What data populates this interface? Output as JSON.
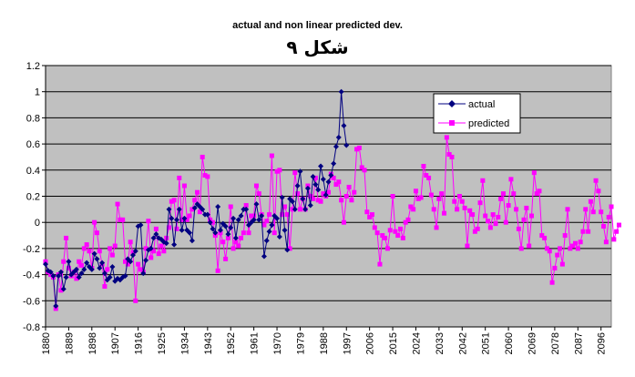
{
  "chart_data": {
    "type": "line",
    "title": "actual and non linear predicted dev.",
    "subtitle": "شكل ٩",
    "xlabel": "",
    "ylabel": "",
    "ylim": [
      -0.8,
      1.2
    ],
    "yticks": [
      -0.8,
      -0.6,
      -0.4,
      -0.2,
      0,
      0.2,
      0.4,
      0.6,
      0.8,
      1,
      1.2
    ],
    "ytick_labels": [
      "-0.8",
      "-0.6",
      "-0.4",
      "-0.2",
      "0",
      "0.2",
      "0.4",
      "0.6",
      "0.8",
      "1",
      "1.2"
    ],
    "xlim": [
      1880,
      2100
    ],
    "xtick_labels": [
      "1880",
      "1889",
      "1898",
      "1907",
      "1916",
      "1925",
      "1934",
      "1943",
      "1952",
      "1961",
      "1970",
      "1979",
      "1988",
      "1997",
      "2006",
      "2015",
      "2024",
      "2033",
      "2042",
      "2051",
      "2060",
      "2069",
      "2078",
      "2087",
      "2096"
    ],
    "grid": true,
    "plot_background": "#c0c0c0",
    "legend_position": "top-right",
    "series": [
      {
        "name": "actual",
        "color": "#000080",
        "marker": "diamond",
        "start_year": 1880,
        "values": [
          -0.32,
          -0.37,
          -0.38,
          -0.41,
          -0.64,
          -0.41,
          -0.38,
          -0.51,
          -0.42,
          -0.3,
          -0.4,
          -0.38,
          -0.36,
          -0.42,
          -0.39,
          -0.36,
          -0.31,
          -0.34,
          -0.36,
          -0.24,
          -0.28,
          -0.35,
          -0.31,
          -0.39,
          -0.44,
          -0.42,
          -0.34,
          -0.45,
          -0.43,
          -0.44,
          -0.42,
          -0.41,
          -0.28,
          -0.3,
          -0.25,
          -0.22,
          -0.03,
          -0.02,
          -0.39,
          -0.29,
          -0.21,
          -0.2,
          -0.12,
          -0.09,
          -0.12,
          -0.13,
          -0.15,
          -0.16,
          0.1,
          0.03,
          -0.17,
          0.02,
          0.1,
          -0.06,
          0.03,
          -0.06,
          -0.08,
          -0.14,
          0.11,
          0.14,
          0.12,
          0.1,
          0.06,
          0.06,
          0.0,
          -0.05,
          -0.08,
          0.12,
          -0.06,
          -0.01,
          -0.03,
          -0.09,
          -0.04,
          0.03,
          -0.12,
          0.02,
          0.05,
          0.1,
          0.1,
          -0.02,
          0.0,
          0.02,
          0.14,
          0.02,
          0.05,
          -0.26,
          -0.14,
          -0.07,
          -0.02,
          0.05,
          0.03,
          -0.11,
          0.19,
          -0.06,
          -0.21,
          0.18,
          0.16,
          0.1,
          0.28,
          0.39,
          0.18,
          0.1,
          0.26,
          0.13,
          0.35,
          0.29,
          0.25,
          0.43,
          0.33,
          0.21,
          0.31,
          0.36,
          0.45,
          0.58,
          0.65,
          1.0,
          0.74,
          0.59
        ]
      },
      {
        "name": "predicted",
        "color": "#ff00ff",
        "marker": "square",
        "start_year": 1880,
        "values": [
          -0.3,
          -0.38,
          -0.4,
          -0.42,
          -0.66,
          -0.4,
          -0.52,
          -0.3,
          -0.12,
          -0.35,
          -0.41,
          -0.38,
          -0.43,
          -0.3,
          -0.33,
          -0.2,
          -0.17,
          -0.22,
          -0.35,
          0.0,
          -0.08,
          -0.22,
          -0.32,
          -0.49,
          -0.36,
          -0.2,
          -0.25,
          -0.18,
          0.14,
          0.02,
          0.02,
          -0.3,
          -0.32,
          -0.15,
          -0.23,
          -0.6,
          -0.32,
          -0.36,
          -0.38,
          -0.2,
          0.01,
          -0.27,
          -0.22,
          -0.05,
          -0.24,
          -0.18,
          -0.22,
          -0.12,
          -0.04,
          0.16,
          0.17,
          -0.05,
          0.34,
          0.02,
          0.28,
          0.02,
          0.05,
          0.1,
          0.17,
          0.23,
          0.08,
          0.5,
          0.36,
          0.35,
          0.02,
          0.0,
          -0.1,
          -0.37,
          -0.08,
          -0.15,
          -0.28,
          -0.12,
          0.12,
          -0.2,
          -0.15,
          -0.18,
          -0.12,
          -0.08,
          0.13,
          -0.08,
          0.05,
          0.05,
          0.28,
          0.22,
          0.06,
          -0.02,
          0.01,
          0.06,
          0.51,
          -0.08,
          0.39,
          0.4,
          0.06,
          0.12,
          0.06,
          -0.2,
          0.1,
          0.38,
          0.22,
          0.1,
          0.18,
          0.1,
          0.28,
          0.2,
          0.18,
          0.34,
          0.17,
          0.16,
          0.22,
          0.2,
          0.23,
          0.37,
          0.34,
          0.29,
          0.31,
          0.17,
          0.0,
          0.2,
          0.27,
          0.17,
          0.23,
          0.56,
          0.57,
          0.42,
          0.4,
          0.08,
          0.04,
          0.06,
          -0.04,
          -0.08,
          -0.32,
          -0.1,
          -0.12,
          -0.2,
          -0.06,
          0.2,
          -0.07,
          -0.1,
          -0.05,
          -0.12,
          0.0,
          0.02,
          0.12,
          0.1,
          0.24,
          0.18,
          0.19,
          0.43,
          0.36,
          0.34,
          0.21,
          0.1,
          -0.04,
          0.18,
          0.22,
          0.07,
          0.65,
          0.52,
          0.5,
          0.16,
          0.1,
          0.2,
          0.16,
          0.11,
          -0.18,
          0.09,
          0.06,
          -0.07,
          -0.05,
          0.15,
          0.32,
          0.05,
          0.01,
          -0.04,
          0.06,
          -0.01,
          0.04,
          0.18,
          0.22,
          0.0,
          0.13,
          0.33,
          0.22,
          0.1,
          -0.05,
          -0.2,
          0.02,
          0.11,
          -0.18,
          0.05,
          0.38,
          0.22,
          0.24,
          -0.1,
          -0.12,
          -0.2,
          -0.22,
          -0.46,
          -0.35,
          -0.25,
          -0.2,
          -0.32,
          -0.1,
          0.1,
          -0.2,
          -0.18,
          -0.16,
          -0.2,
          -0.15,
          -0.07,
          0.1,
          -0.07,
          0.16,
          0.08,
          0.32,
          0.24,
          0.08,
          -0.03,
          -0.15,
          0.04,
          0.12,
          -0.13,
          -0.07,
          -0.02
        ]
      }
    ]
  }
}
